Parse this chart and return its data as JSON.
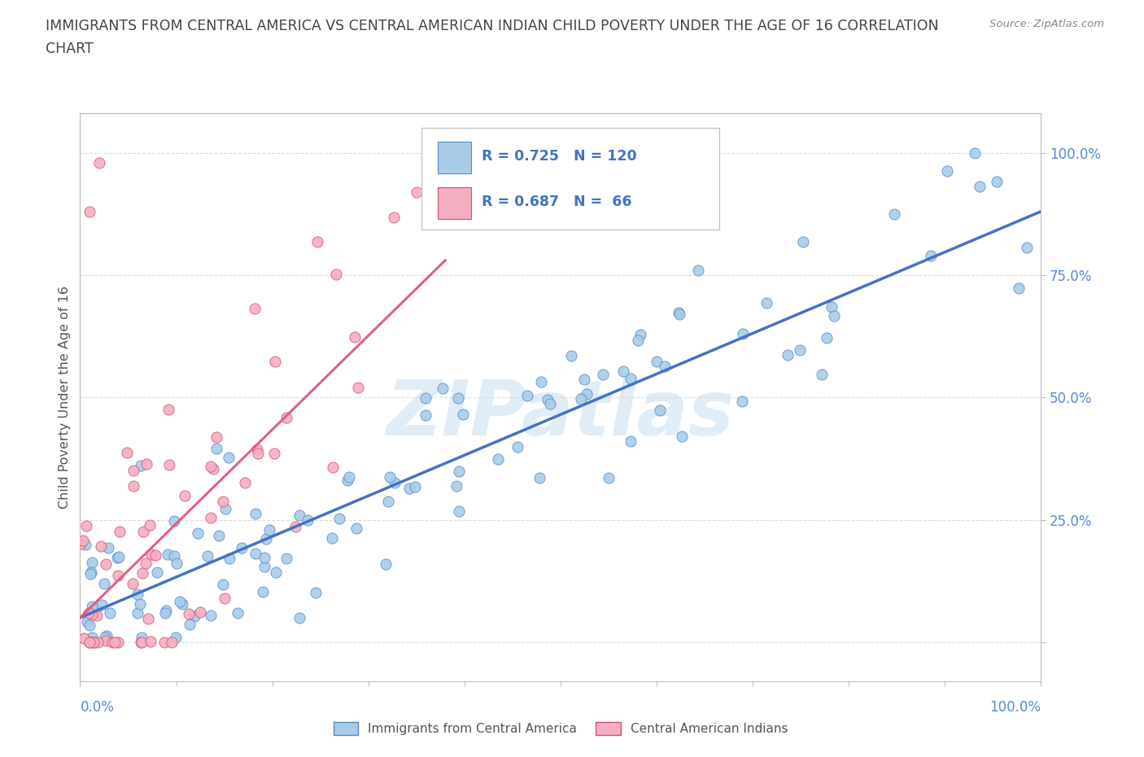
{
  "title_line1": "IMMIGRANTS FROM CENTRAL AMERICA VS CENTRAL AMERICAN INDIAN CHILD POVERTY UNDER THE AGE OF 16 CORRELATION",
  "title_line2": "CHART",
  "source_text": "Source: ZipAtlas.com",
  "ylabel": "Child Poverty Under the Age of 16",
  "xlim": [
    0,
    1.0
  ],
  "ylim": [
    -0.08,
    1.08
  ],
  "blue_R": 0.725,
  "blue_N": 120,
  "pink_R": 0.687,
  "pink_N": 66,
  "blue_scatter_color": "#a8cce8",
  "blue_line_color": "#4472c4",
  "blue_edge_color": "#5588cc",
  "pink_scatter_color": "#f4aec0",
  "pink_line_color": "#e06080",
  "pink_edge_color": "#d05070",
  "legend_blue_label": "Immigrants from Central America",
  "legend_pink_label": "Central American Indians",
  "watermark_text": "ZIPatlas",
  "watermark_color": "#c8ddf0",
  "background_color": "#ffffff",
  "title_color": "#444444",
  "title_fontsize": 12.5,
  "source_color": "#888888",
  "axis_color": "#bbbbbb",
  "grid_color": "#dddddd",
  "tick_label_color": "#5588dd",
  "legend_box_color": "#4472c4",
  "ytick_values": [
    0.0,
    0.25,
    0.5,
    0.75,
    1.0
  ],
  "ytick_labels": [
    "",
    "25.0%",
    "50.0%",
    "75.0%",
    "100.0%"
  ],
  "blue_line_x": [
    0,
    1.0
  ],
  "blue_line_y": [
    0.05,
    0.88
  ],
  "pink_line_x": [
    0.0,
    0.38
  ],
  "pink_line_y": [
    0.05,
    0.78
  ]
}
